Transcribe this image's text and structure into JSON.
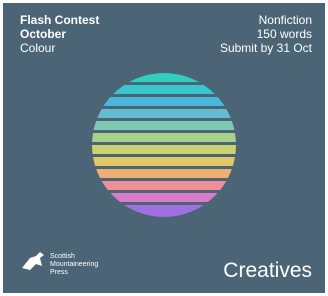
{
  "header": {
    "left": [
      "Flash Contest",
      "October",
      "Colour"
    ],
    "right": [
      "Nonfiction",
      "150 words",
      "Submit by 31 Oct"
    ]
  },
  "footer": {
    "publisher": [
      "Scottish",
      "Mountaineering",
      "Press"
    ],
    "brand": "Creatives"
  }
}
